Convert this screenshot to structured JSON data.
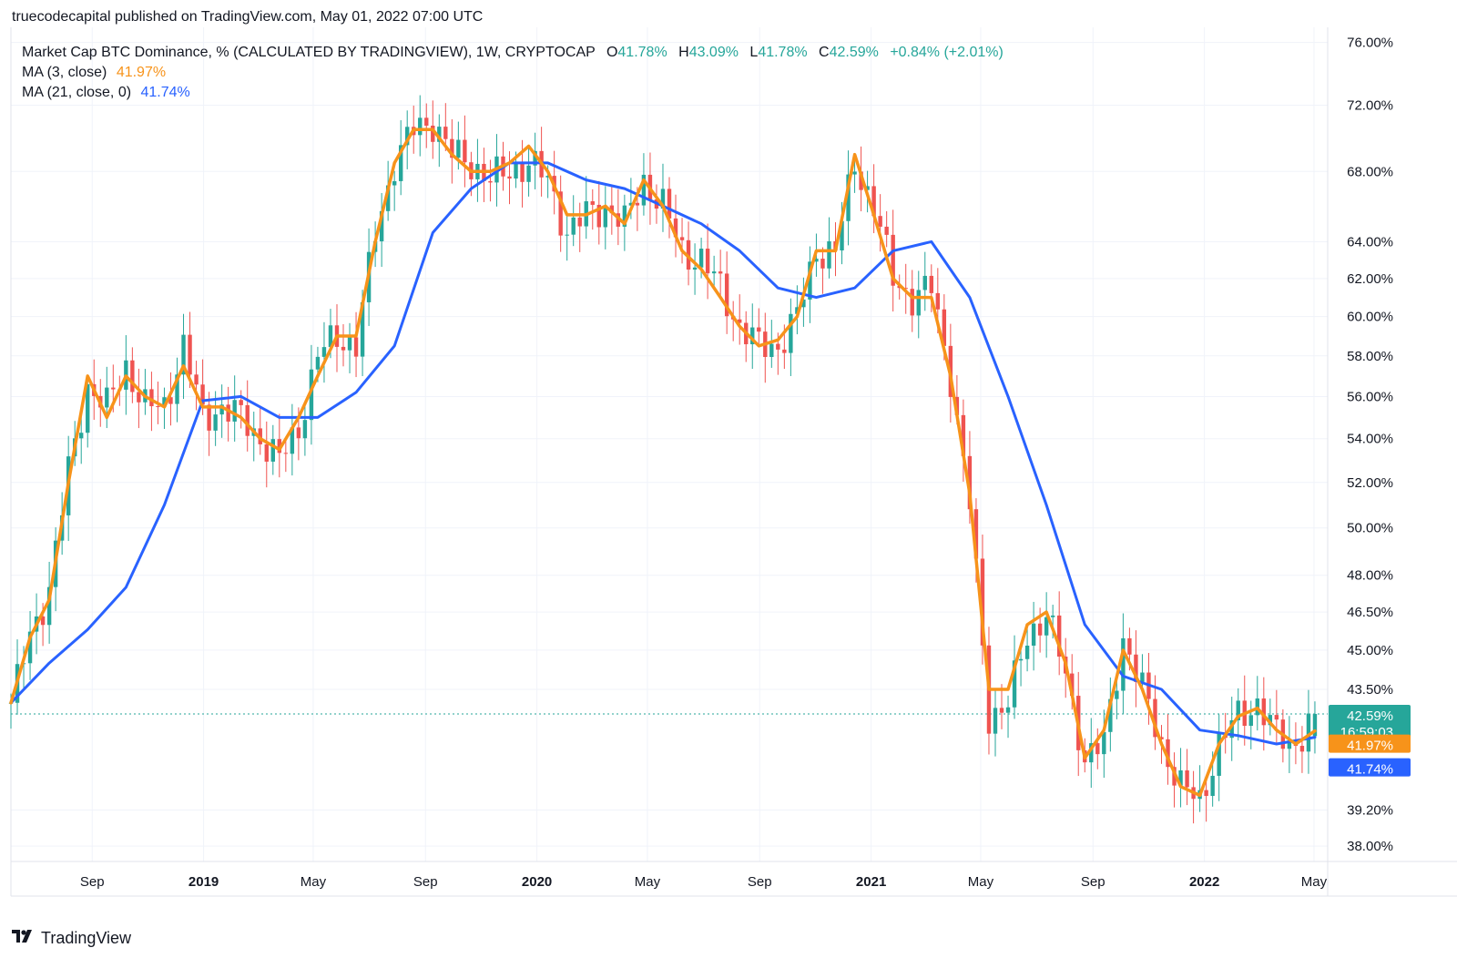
{
  "header": {
    "publisher": "truecodecapital published on TradingView.com, May 01, 2022 07:00 UTC"
  },
  "legend": {
    "symbol": "Market Cap BTC Dominance, % (CALCULATED BY TRADINGVIEW), 1W, CRYPTOCAP",
    "o_label": "O",
    "o_value": "41.78%",
    "h_label": "H",
    "h_value": "43.09%",
    "l_label": "L",
    "l_value": "41.78%",
    "c_label": "C",
    "c_value": "42.59%",
    "change": "+0.84% (+2.01%)",
    "ma3_label": "MA (3, close)",
    "ma3_value": "41.97%",
    "ma21_label": "MA (21, close, 0)",
    "ma21_value": "41.74%"
  },
  "footer": {
    "logo_icon": "tradingview-logo-icon",
    "brand": "TradingView"
  },
  "colors": {
    "up": "#26a69a",
    "down": "#ef5350",
    "ma3": "#f7931a",
    "ma21": "#2962ff",
    "grid": "#f0f3fa",
    "axis_text": "#131722"
  },
  "chart_data": {
    "type": "candlestick",
    "scale": "log",
    "ylim": [
      37.5,
      77
    ],
    "y_ticks": [
      "76.00%",
      "72.00%",
      "68.00%",
      "64.00%",
      "62.00%",
      "60.00%",
      "58.00%",
      "56.00%",
      "54.00%",
      "52.00%",
      "50.00%",
      "48.00%",
      "46.50%",
      "45.00%",
      "43.50%",
      "39.20%",
      "38.00%"
    ],
    "x_ticks": [
      {
        "date": "2018-09-01",
        "label": "Sep",
        "bold": false
      },
      {
        "date": "2019-01-01",
        "label": "2019",
        "bold": true
      },
      {
        "date": "2019-05-01",
        "label": "May",
        "bold": false
      },
      {
        "date": "2019-09-01",
        "label": "Sep",
        "bold": false
      },
      {
        "date": "2020-01-01",
        "label": "2020",
        "bold": true
      },
      {
        "date": "2020-05-01",
        "label": "May",
        "bold": false
      },
      {
        "date": "2020-09-01",
        "label": "Sep",
        "bold": false
      },
      {
        "date": "2021-01-01",
        "label": "2021",
        "bold": true
      },
      {
        "date": "2021-05-01",
        "label": "May",
        "bold": false
      },
      {
        "date": "2021-09-01",
        "label": "Sep",
        "bold": false
      },
      {
        "date": "2022-01-01",
        "label": "2022",
        "bold": true
      },
      {
        "date": "2022-05-01",
        "label": "May",
        "bold": false
      }
    ],
    "x_range": [
      "2018-06-04",
      "2022-05-16"
    ],
    "closes": [
      [
        "2018-06-04",
        43.0
      ],
      [
        "2018-06-25",
        45.5
      ],
      [
        "2018-07-16",
        47.5
      ],
      [
        "2018-08-06",
        52.5
      ],
      [
        "2018-08-27",
        56.5
      ],
      [
        "2018-09-17",
        55.5
      ],
      [
        "2018-10-08",
        57.5
      ],
      [
        "2018-10-29",
        55.5
      ],
      [
        "2018-11-19",
        55.5
      ],
      [
        "2018-12-10",
        58.5
      ],
      [
        "2018-12-31",
        55.0
      ],
      [
        "2019-01-21",
        55.5
      ],
      [
        "2019-02-11",
        55.0
      ],
      [
        "2019-03-04",
        54.0
      ],
      [
        "2019-03-25",
        53.0
      ],
      [
        "2019-04-15",
        54.5
      ],
      [
        "2019-05-06",
        58.0
      ],
      [
        "2019-05-27",
        59.0
      ],
      [
        "2019-06-17",
        58.5
      ],
      [
        "2019-07-08",
        64.5
      ],
      [
        "2019-07-29",
        68.5
      ],
      [
        "2019-08-19",
        70.5
      ],
      [
        "2019-09-09",
        71.0
      ],
      [
        "2019-09-30",
        69.0
      ],
      [
        "2019-10-21",
        68.5
      ],
      [
        "2019-11-11",
        67.5
      ],
      [
        "2019-12-02",
        68.0
      ],
      [
        "2019-12-23",
        68.5
      ],
      [
        "2020-01-13",
        67.5
      ],
      [
        "2020-02-03",
        64.5
      ],
      [
        "2020-02-24",
        65.5
      ],
      [
        "2020-03-16",
        66.0
      ],
      [
        "2020-04-06",
        65.0
      ],
      [
        "2020-04-27",
        67.5
      ],
      [
        "2020-05-18",
        66.0
      ],
      [
        "2020-06-08",
        63.5
      ],
      [
        "2020-06-29",
        63.0
      ],
      [
        "2020-07-20",
        61.5
      ],
      [
        "2020-08-10",
        59.5
      ],
      [
        "2020-08-31",
        58.5
      ],
      [
        "2020-09-21",
        58.5
      ],
      [
        "2020-10-12",
        60.0
      ],
      [
        "2020-11-02",
        63.5
      ],
      [
        "2020-11-23",
        63.5
      ],
      [
        "2020-12-14",
        68.5
      ],
      [
        "2021-01-04",
        66.0
      ],
      [
        "2021-01-25",
        62.0
      ],
      [
        "2021-02-15",
        61.0
      ],
      [
        "2021-03-08",
        61.5
      ],
      [
        "2021-03-29",
        57.0
      ],
      [
        "2021-04-19",
        51.0
      ],
      [
        "2021-05-10",
        42.5
      ],
      [
        "2021-05-31",
        43.0
      ],
      [
        "2021-06-21",
        45.5
      ],
      [
        "2021-07-12",
        46.5
      ],
      [
        "2021-08-02",
        44.0
      ],
      [
        "2021-08-23",
        41.0
      ],
      [
        "2021-09-13",
        41.5
      ],
      [
        "2021-10-04",
        45.5
      ],
      [
        "2021-10-25",
        43.5
      ],
      [
        "2021-11-15",
        41.5
      ],
      [
        "2021-12-06",
        40.0
      ],
      [
        "2021-12-27",
        39.5
      ],
      [
        "2022-01-17",
        41.5
      ],
      [
        "2022-02-07",
        42.5
      ],
      [
        "2022-02-28",
        43.0
      ],
      [
        "2022-03-21",
        41.8
      ],
      [
        "2022-04-11",
        41.5
      ],
      [
        "2022-05-02",
        42.59
      ]
    ],
    "ma3": [
      [
        "2018-06-04",
        43.0
      ],
      [
        "2018-06-25",
        45.5
      ],
      [
        "2018-07-16",
        47.0
      ],
      [
        "2018-08-06",
        52.0
      ],
      [
        "2018-08-27",
        57.0
      ],
      [
        "2018-09-17",
        55.0
      ],
      [
        "2018-10-08",
        57.0
      ],
      [
        "2018-10-29",
        56.0
      ],
      [
        "2018-11-19",
        55.5
      ],
      [
        "2018-12-10",
        57.5
      ],
      [
        "2018-12-31",
        55.5
      ],
      [
        "2019-01-21",
        55.5
      ],
      [
        "2019-02-11",
        55.0
      ],
      [
        "2019-03-04",
        54.0
      ],
      [
        "2019-03-25",
        53.5
      ],
      [
        "2019-04-15",
        55.0
      ],
      [
        "2019-05-06",
        57.0
      ],
      [
        "2019-05-27",
        59.0
      ],
      [
        "2019-06-17",
        59.0
      ],
      [
        "2019-07-08",
        64.0
      ],
      [
        "2019-07-29",
        68.5
      ],
      [
        "2019-08-19",
        70.5
      ],
      [
        "2019-09-09",
        70.5
      ],
      [
        "2019-09-30",
        69.0
      ],
      [
        "2019-10-21",
        68.0
      ],
      [
        "2019-11-11",
        68.0
      ],
      [
        "2019-12-02",
        68.5
      ],
      [
        "2019-12-23",
        69.5
      ],
      [
        "2020-01-13",
        68.0
      ],
      [
        "2020-02-03",
        65.5
      ],
      [
        "2020-02-24",
        65.5
      ],
      [
        "2020-03-16",
        66.0
      ],
      [
        "2020-04-06",
        65.0
      ],
      [
        "2020-04-27",
        67.5
      ],
      [
        "2020-05-18",
        66.0
      ],
      [
        "2020-06-08",
        63.5
      ],
      [
        "2020-06-29",
        62.5
      ],
      [
        "2020-07-20",
        61.0
      ],
      [
        "2020-08-10",
        59.5
      ],
      [
        "2020-08-31",
        58.5
      ],
      [
        "2020-09-21",
        58.8
      ],
      [
        "2020-10-12",
        60.0
      ],
      [
        "2020-11-02",
        63.5
      ],
      [
        "2020-11-23",
        63.5
      ],
      [
        "2020-12-14",
        69.0
      ],
      [
        "2021-01-04",
        65.5
      ],
      [
        "2021-01-25",
        62.0
      ],
      [
        "2021-02-15",
        61.0
      ],
      [
        "2021-03-08",
        61.0
      ],
      [
        "2021-03-29",
        57.0
      ],
      [
        "2021-04-19",
        51.5
      ],
      [
        "2021-05-10",
        43.5
      ],
      [
        "2021-05-31",
        43.5
      ],
      [
        "2021-06-21",
        46.0
      ],
      [
        "2021-07-12",
        46.5
      ],
      [
        "2021-08-02",
        44.5
      ],
      [
        "2021-08-23",
        41.0
      ],
      [
        "2021-09-13",
        42.0
      ],
      [
        "2021-10-04",
        45.0
      ],
      [
        "2021-10-25",
        43.5
      ],
      [
        "2021-11-15",
        41.5
      ],
      [
        "2021-12-06",
        40.0
      ],
      [
        "2021-12-27",
        39.7
      ],
      [
        "2022-01-17",
        41.5
      ],
      [
        "2022-02-07",
        42.5
      ],
      [
        "2022-02-28",
        42.8
      ],
      [
        "2022-03-21",
        42.0
      ],
      [
        "2022-04-11",
        41.5
      ],
      [
        "2022-05-02",
        41.97
      ]
    ],
    "ma21": [
      [
        "2018-06-04",
        43.0
      ],
      [
        "2018-07-16",
        44.5
      ],
      [
        "2018-08-27",
        45.8
      ],
      [
        "2018-10-08",
        47.5
      ],
      [
        "2018-11-19",
        51.0
      ],
      [
        "2018-12-31",
        55.8
      ],
      [
        "2019-02-11",
        56.0
      ],
      [
        "2019-03-25",
        55.0
      ],
      [
        "2019-05-06",
        55.0
      ],
      [
        "2019-06-17",
        56.2
      ],
      [
        "2019-07-29",
        58.5
      ],
      [
        "2019-09-09",
        64.5
      ],
      [
        "2019-10-21",
        67.0
      ],
      [
        "2019-12-02",
        68.5
      ],
      [
        "2020-01-13",
        68.5
      ],
      [
        "2020-02-24",
        67.5
      ],
      [
        "2020-04-06",
        67.0
      ],
      [
        "2020-05-18",
        66.0
      ],
      [
        "2020-06-29",
        65.0
      ],
      [
        "2020-08-10",
        63.5
      ],
      [
        "2020-09-21",
        61.5
      ],
      [
        "2020-11-02",
        61.0
      ],
      [
        "2020-12-14",
        61.5
      ],
      [
        "2021-01-25",
        63.5
      ],
      [
        "2021-03-08",
        64.0
      ],
      [
        "2021-04-19",
        61.0
      ],
      [
        "2021-05-31",
        56.0
      ],
      [
        "2021-07-12",
        51.0
      ],
      [
        "2021-08-23",
        46.0
      ],
      [
        "2021-10-04",
        44.0
      ],
      [
        "2021-11-15",
        43.5
      ],
      [
        "2021-12-27",
        42.0
      ],
      [
        "2022-02-07",
        41.8
      ],
      [
        "2022-03-21",
        41.5
      ],
      [
        "2022-05-02",
        41.74
      ]
    ],
    "labels": {
      "last_close": "42.59%",
      "countdown": "16:59:03",
      "ma3": "41.97%",
      "ma21": "41.74%"
    }
  }
}
